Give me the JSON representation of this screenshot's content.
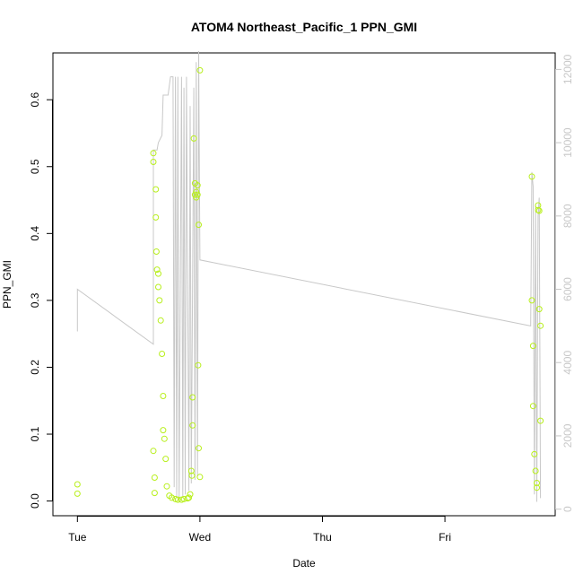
{
  "chart_data": {
    "type": "scatter",
    "title": "ATOM4 Northeast_Pacific_1 PPN_GMI",
    "xlabel": "Date",
    "ylabel": "PPN_GMI",
    "x_ticks": [
      "Tue",
      "Wed",
      "Thu",
      "Fri"
    ],
    "y_ticks": [
      "0.0",
      "0.1",
      "0.2",
      "0.3",
      "0.4",
      "0.5",
      "0.6"
    ],
    "y_right_ticks": [
      "0",
      "2000",
      "4000",
      "6000",
      "8000",
      "10000",
      "12000"
    ],
    "xlim_days": [
      -0.2,
      3.9
    ],
    "ylim": [
      -0.022,
      0.67
    ],
    "y2lim": [
      -180,
      12450
    ],
    "grid": false,
    "colors": {
      "points": "#b8ef1c",
      "line": "#c8c8c8",
      "axis": "#000000",
      "right_axis": "#c8c8c8"
    },
    "series": [
      {
        "kind": "points",
        "x_days": [
          0.0,
          0.0,
          0.62,
          0.62,
          0.62,
          0.63,
          0.63,
          0.64,
          0.64,
          0.645,
          0.65,
          0.66,
          0.66,
          0.67,
          0.68,
          0.69,
          0.7,
          0.7,
          0.71,
          0.72,
          0.73,
          0.75,
          0.77,
          0.8,
          0.82,
          0.85,
          0.87,
          0.9,
          0.91,
          0.92,
          0.93,
          0.935,
          0.94,
          0.94,
          0.95,
          0.96,
          0.96,
          0.97,
          0.97,
          0.98,
          0.98,
          0.985,
          0.99,
          0.99,
          1.0,
          1.0,
          3.71,
          3.71,
          3.72,
          3.72,
          3.73,
          3.74,
          3.75,
          3.75,
          3.76,
          3.76,
          3.77,
          3.77,
          3.78,
          3.78
        ],
        "y": [
          0.025,
          0.011,
          0.52,
          0.507,
          0.075,
          0.035,
          0.012,
          0.466,
          0.424,
          0.373,
          0.346,
          0.34,
          0.32,
          0.3,
          0.27,
          0.22,
          0.157,
          0.106,
          0.093,
          0.063,
          0.022,
          0.008,
          0.005,
          0.003,
          0.002,
          0.002,
          0.003,
          0.004,
          0.005,
          0.01,
          0.045,
          0.038,
          0.155,
          0.113,
          0.542,
          0.475,
          0.458,
          0.462,
          0.454,
          0.472,
          0.458,
          0.203,
          0.413,
          0.079,
          0.036,
          0.644,
          0.485,
          0.3,
          0.232,
          0.142,
          0.07,
          0.045,
          0.027,
          0.02,
          0.442,
          0.435,
          0.434,
          0.287,
          0.262,
          0.12
        ]
      },
      {
        "kind": "line",
        "axis": "right",
        "x_days": [
          0.0,
          0.0,
          0.62,
          0.62,
          0.65,
          0.66,
          0.69,
          0.7,
          0.74,
          0.76,
          0.78,
          0.79,
          0.8,
          0.81,
          0.82,
          0.83,
          0.85,
          0.86,
          0.87,
          0.88,
          0.89,
          0.91,
          0.92,
          0.93,
          0.95,
          0.96,
          0.97,
          0.98,
          0.99,
          1.0,
          1.0,
          3.7,
          3.71,
          3.72,
          3.73,
          3.74,
          3.75,
          3.76,
          3.77,
          3.78
        ],
        "y": [
          4850,
          6000,
          4500,
          9800,
          9800,
          10000,
          10200,
          11300,
          11300,
          11800,
          11800,
          600,
          11800,
          300,
          11800,
          200,
          11800,
          300,
          11500,
          400,
          11800,
          500,
          11000,
          700,
          11500,
          800,
          12200,
          900,
          12500,
          6800,
          6800,
          5000,
          9200,
          8800,
          400,
          8300,
          200,
          8000,
          8500,
          300
        ]
      }
    ]
  }
}
